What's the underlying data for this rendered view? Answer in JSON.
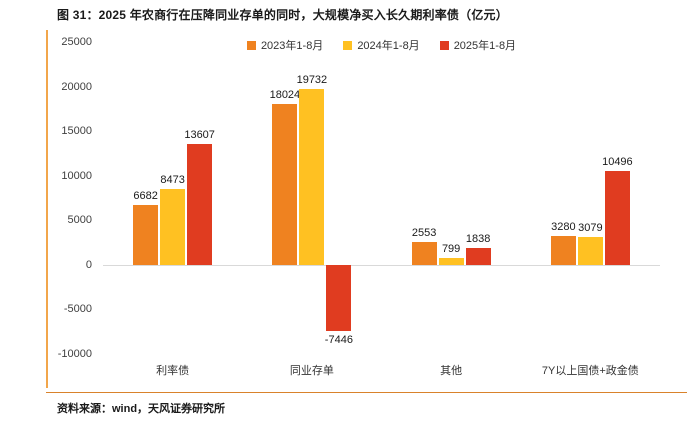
{
  "title": "图 31：2025 年农商行在压降同业存单的同时，大规模净买入长久期利率债（亿元）",
  "source": "资料来源：wind，天风证券研究所",
  "colors": {
    "series_2023": "#EF8220",
    "series_2024": "#FFC122",
    "series_2025": "#E03C20",
    "accent_line": "#F2A64B",
    "bottom_rule": "#D9822B",
    "zero_line": "#d9d9d9"
  },
  "chart_data": {
    "type": "bar",
    "categories": [
      "利率债",
      "同业存单",
      "其他",
      "7Y以上国债+政金债"
    ],
    "series": [
      {
        "name": "2023年1-8月",
        "color": "#EF8220",
        "values": [
          6682,
          18024,
          2553,
          3280
        ]
      },
      {
        "name": "2024年1-8月",
        "color": "#FFC122",
        "values": [
          8473,
          19732,
          799,
          3079
        ]
      },
      {
        "name": "2025年1-8月",
        "color": "#E03C20",
        "values": [
          13607,
          -7446,
          1838,
          10496
        ]
      }
    ],
    "title": "2025 年农商行在压降同业存单的同时，大规模净买入长久期利率债（亿元）",
    "xlabel": "",
    "ylabel": "",
    "ylim": [
      -10000,
      25000
    ],
    "ytick_step": 5000,
    "yticks": [
      25000,
      20000,
      15000,
      10000,
      5000,
      0,
      -5000,
      -10000
    ],
    "grid": false,
    "legend_position": "top",
    "value_labels": true
  }
}
